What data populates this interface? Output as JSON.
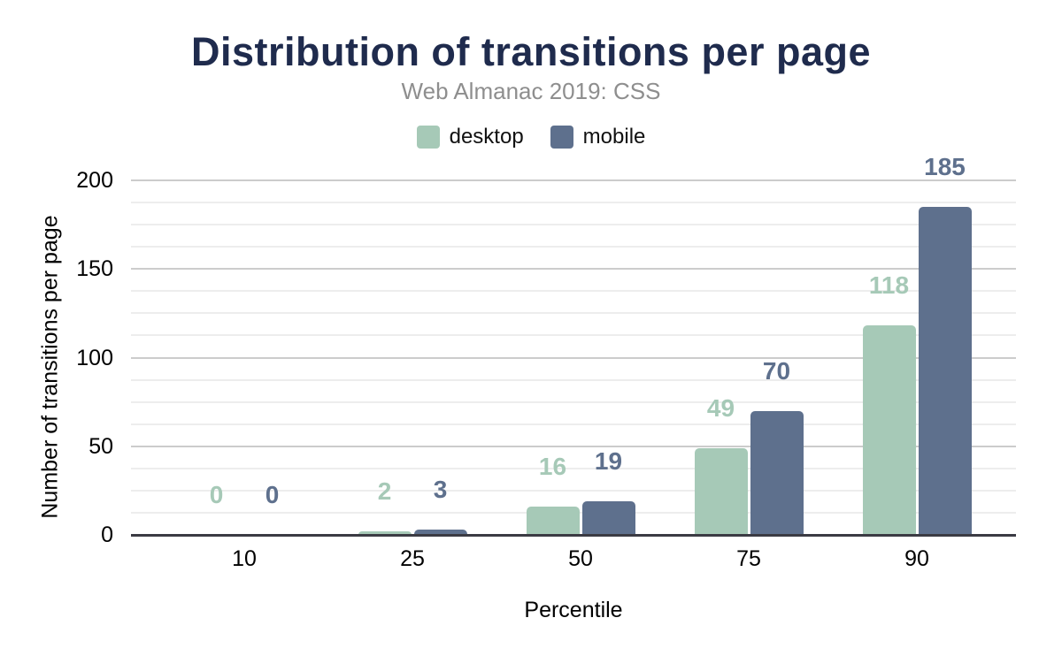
{
  "header": {
    "title": "Distribution of transitions per page",
    "subtitle": "Web Almanac 2019: CSS"
  },
  "colors": {
    "title": "#1f2b4d",
    "subtitle": "#8e8e8e",
    "desktop": "#a6c9b7",
    "mobile": "#5e708d",
    "axis_line": "#3b3b43",
    "major_grid": "#cccccc",
    "minor_grid": "#ededed"
  },
  "chart_data": {
    "type": "bar",
    "title": "Distribution of transitions per page",
    "subtitle": "Web Almanac 2019: CSS",
    "categories": [
      "10",
      "25",
      "50",
      "75",
      "90"
    ],
    "series": [
      {
        "name": "desktop",
        "color": "#a6c9b7",
        "values": [
          0,
          2,
          16,
          49,
          118
        ]
      },
      {
        "name": "mobile",
        "color": "#5e708d",
        "values": [
          0,
          3,
          19,
          70,
          185
        ]
      }
    ],
    "xlabel": "Percentile",
    "ylabel": "Number of transitions per page",
    "ylim": [
      0,
      200
    ],
    "yticks": [
      0,
      50,
      100,
      150,
      200
    ],
    "minor_tick_step": 12.5,
    "grid": true,
    "legend_position": "top",
    "bar_value_labels": true
  }
}
